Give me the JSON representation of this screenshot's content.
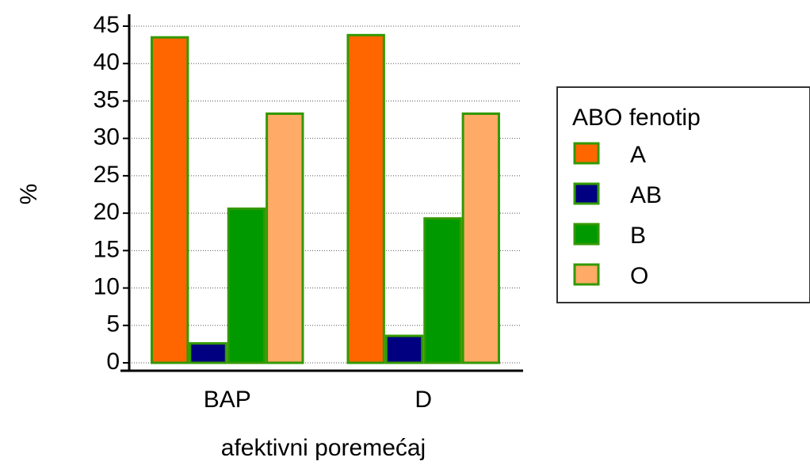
{
  "chart_data": {
    "type": "bar",
    "title": "",
    "xlabel": "afektivni poremećaj",
    "ylabel": "%",
    "categories": [
      "BAP",
      "D"
    ],
    "series": [
      {
        "name": "A",
        "values": [
          43.5,
          43.8
        ],
        "color": "#FF6600"
      },
      {
        "name": "AB",
        "values": [
          2.6,
          3.6
        ],
        "color": "#000080"
      },
      {
        "name": "B",
        "values": [
          20.6,
          19.3
        ],
        "color": "#009900"
      },
      {
        "name": "O",
        "values": [
          33.3,
          33.3
        ],
        "color": "#FFAA66"
      }
    ],
    "bar_outline_color": "#339900",
    "ylim": [
      0,
      45
    ],
    "yticks": [
      0,
      5,
      10,
      15,
      20,
      25,
      30,
      35,
      40,
      45
    ],
    "grid": "horizontal-dotted",
    "legend": {
      "title": "ABO fenotip",
      "position": "right"
    }
  }
}
